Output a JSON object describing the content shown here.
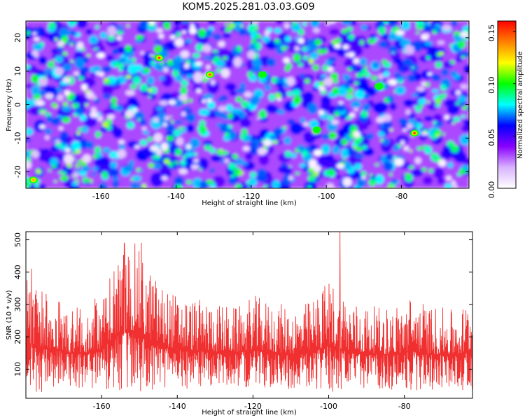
{
  "chart_data": [
    {
      "type": "heatmap",
      "title": "KOM5.2025.281.03.03.G09",
      "xlabel": "Height of straight line (km)",
      "ylabel": "Frequency (Hz)",
      "xlim": [
        -180,
        -62
      ],
      "ylim": [
        -25,
        25
      ],
      "x_ticks": [
        -160,
        -140,
        -120,
        -100,
        -80
      ],
      "y_ticks": [
        20,
        10,
        0,
        -10,
        -20
      ],
      "colorbar": {
        "label": "Normalized spectral amplitude",
        "range": [
          0.0,
          0.16
        ],
        "ticks": [
          "0.00",
          "0.05",
          "0.10",
          "0.15"
        ],
        "tick_values": [
          0.0,
          0.05,
          0.1,
          0.15
        ],
        "colormap": [
          "#ffffff",
          "#d9b3ff",
          "#8a00ff",
          "#0000ff",
          "#00ffff",
          "#00ff00",
          "#ffff00",
          "#ff8000",
          "#ff0000"
        ]
      },
      "hotspots": [
        {
          "x": -144.5,
          "y": 14,
          "v": 0.16
        },
        {
          "x": -131,
          "y": 9,
          "v": 0.15
        },
        {
          "x": -76.5,
          "y": -8.5,
          "v": 0.16
        },
        {
          "x": -178,
          "y": -22.5,
          "v": 0.14
        },
        {
          "x": -117,
          "y": 9,
          "v": 0.11
        },
        {
          "x": -102.5,
          "y": -7.5,
          "v": 0.11
        },
        {
          "x": -86,
          "y": 5.5,
          "v": 0.1
        },
        {
          "x": -159,
          "y": 10,
          "v": 0.09
        },
        {
          "x": -139,
          "y": 0.5,
          "v": 0.08
        },
        {
          "x": -113,
          "y": -2.5,
          "v": 0.09
        },
        {
          "x": -93,
          "y": 17,
          "v": 0.08
        },
        {
          "x": -66,
          "y": 1,
          "v": 0.08
        }
      ]
    },
    {
      "type": "line",
      "xlabel": "Height of straight line (km)",
      "ylabel": "SNR (10 * v/v)",
      "xlim": [
        -180,
        -62
      ],
      "ylim": [
        10,
        525
      ],
      "x_ticks": [
        -160,
        -140,
        -120,
        -100,
        -80
      ],
      "y_ticks": [
        100,
        200,
        300,
        400,
        500
      ],
      "series": [
        {
          "name": "SNR",
          "color": "#f03030",
          "envelope_x": [
            -180,
            -176,
            -172,
            -168,
            -164,
            -160,
            -157,
            -154,
            -151,
            -148,
            -144,
            -140,
            -136,
            -132,
            -128,
            -124,
            -120,
            -116,
            -112,
            -108,
            -104,
            -100,
            -97,
            -94,
            -90,
            -86,
            -82,
            -78,
            -74,
            -70,
            -66,
            -62
          ],
          "envelope_max": [
            410,
            350,
            330,
            300,
            310,
            330,
            430,
            480,
            490,
            420,
            360,
            330,
            320,
            310,
            300,
            290,
            330,
            310,
            300,
            290,
            320,
            380,
            350,
            310,
            300,
            290,
            300,
            330,
            300,
            290,
            280,
            330
          ],
          "envelope_min": [
            20,
            30,
            40,
            40,
            35,
            30,
            30,
            20,
            25,
            30,
            35,
            40,
            40,
            45,
            45,
            50,
            40,
            40,
            40,
            40,
            35,
            25,
            30,
            35,
            40,
            40,
            35,
            30,
            35,
            40,
            40,
            30
          ],
          "peaks": [
            {
              "x": -97,
              "y": 525
            },
            {
              "x": -154,
              "y": 490
            },
            {
              "x": -149.5,
              "y": 490
            },
            {
              "x": -178.5,
              "y": 410
            }
          ]
        }
      ]
    }
  ]
}
